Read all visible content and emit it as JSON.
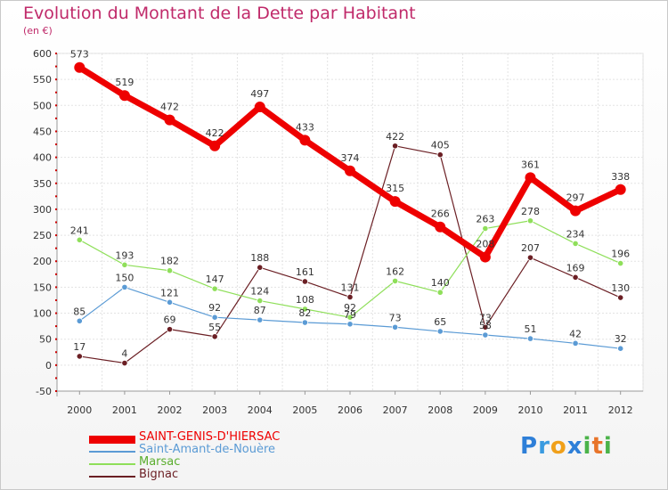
{
  "title": "Evolution du Montant de la Dette par Habitant",
  "subtitle": "(en €)",
  "chart_data": {
    "type": "line",
    "title": "Evolution du Montant de la Dette par Habitant",
    "ylabel": "(en €)",
    "xlabel": "",
    "x": [
      "2000",
      "2001",
      "2002",
      "2003",
      "2004",
      "2005",
      "2006",
      "2007",
      "2008",
      "2009",
      "2010",
      "2011",
      "2012"
    ],
    "ylim": [
      -50,
      600
    ],
    "yticks": [
      -50,
      0,
      50,
      100,
      150,
      200,
      250,
      300,
      350,
      400,
      450,
      500,
      550,
      600
    ],
    "grid": true,
    "legend_position": "bottom-left",
    "series": [
      {
        "name": "SAINT-GENIS-D'HIERSAC",
        "color": "#ee0000",
        "width": 7,
        "values": [
          573,
          519,
          472,
          422,
          497,
          433,
          374,
          315,
          266,
          208,
          361,
          297,
          338
        ]
      },
      {
        "name": "Saint-Amant-de-Nouère",
        "color": "#5b9bd5",
        "width": 1.2,
        "values": [
          85,
          150,
          121,
          92,
          87,
          82,
          79,
          73,
          65,
          58,
          51,
          42,
          32
        ]
      },
      {
        "name": "Marsac",
        "color": "#8fdf5a",
        "width": 1.2,
        "values": [
          241,
          193,
          182,
          147,
          124,
          108,
          92,
          162,
          140,
          263,
          278,
          234,
          196
        ]
      },
      {
        "name": "Bignac",
        "color": "#6b1f24",
        "width": 1.2,
        "values": [
          17,
          4,
          69,
          55,
          188,
          161,
          131,
          422,
          405,
          73,
          207,
          169,
          130
        ]
      }
    ]
  },
  "logo": {
    "letters": [
      "P",
      "r",
      "o",
      "x",
      "i",
      "t",
      "i"
    ],
    "colors": [
      "#2e7fd8",
      "#3a9be0",
      "#f0a01a",
      "#2e7fd8",
      "#4bb34a",
      "#e8742a",
      "#4bb34a"
    ]
  }
}
